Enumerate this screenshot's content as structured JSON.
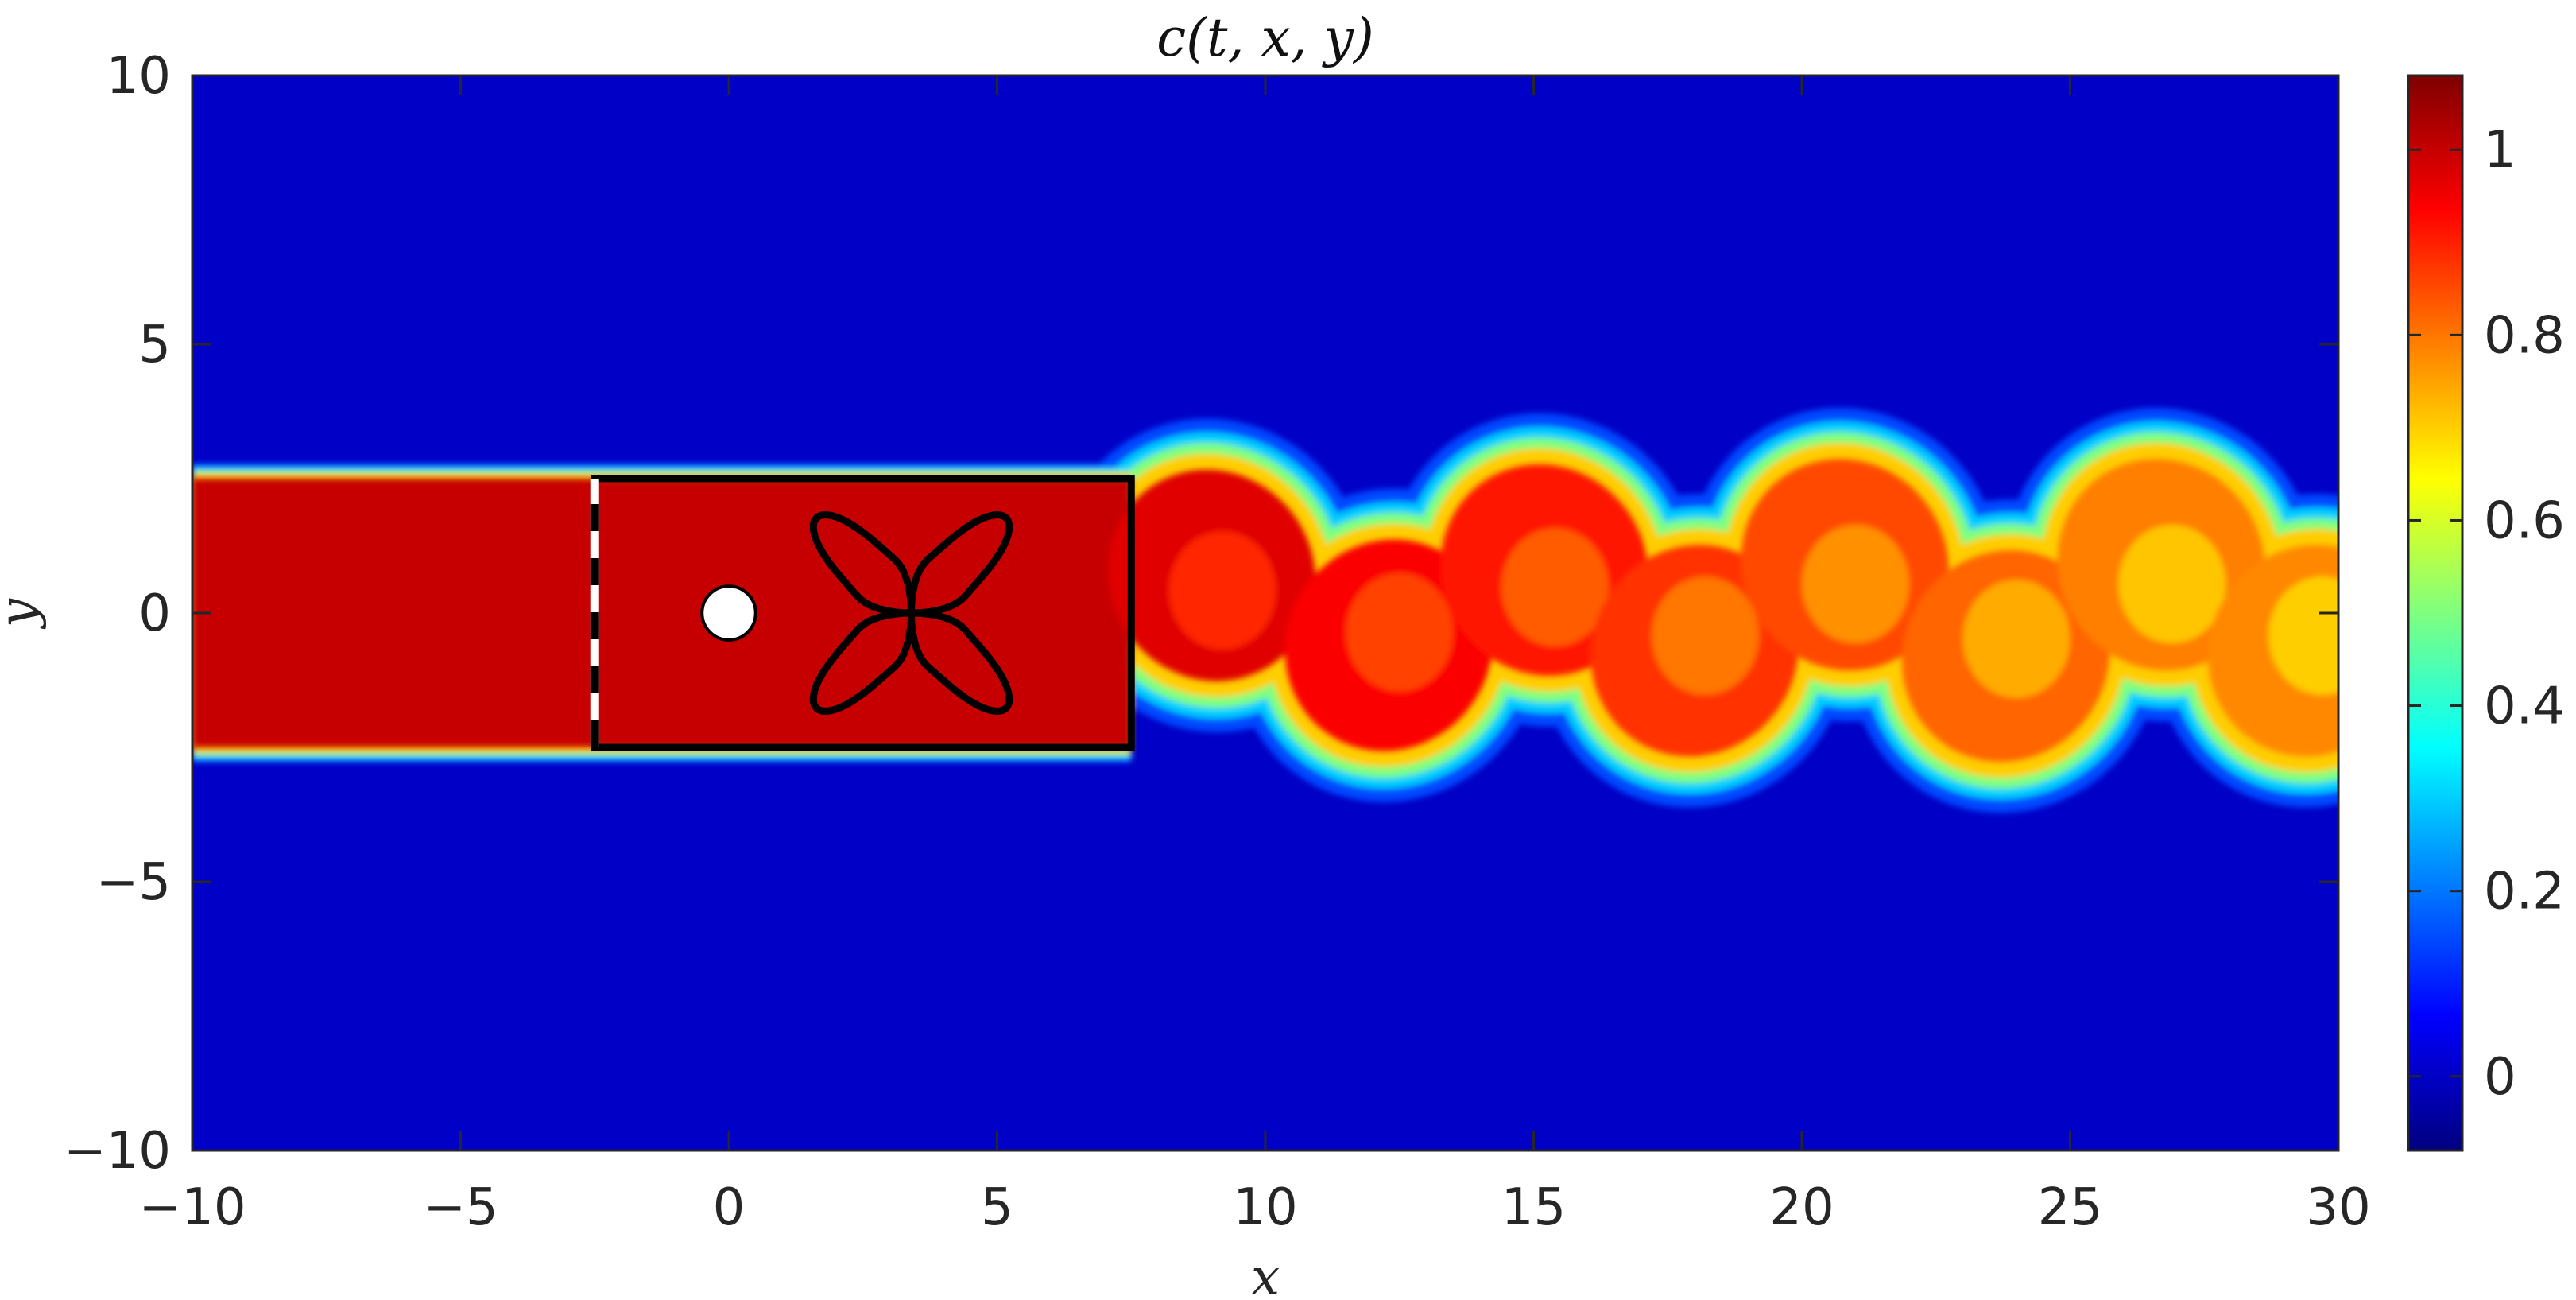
{
  "chart_data": {
    "type": "heatmap",
    "title": "c(t, x, y)",
    "xlabel": "x",
    "ylabel": "y",
    "xlim": [
      -10,
      30
    ],
    "ylim": [
      -10,
      10
    ],
    "xticks": [
      -10,
      -5,
      0,
      5,
      10,
      15,
      20,
      25,
      30
    ],
    "yticks": [
      -10,
      -5,
      0,
      5,
      10
    ],
    "xtick_labels": [
      "−10",
      "−5",
      "0",
      "5",
      "10",
      "15",
      "20",
      "25",
      "30"
    ],
    "ytick_labels": [
      "−10",
      "−5",
      "0",
      "5",
      "10"
    ],
    "colorbar": {
      "colormap": "jet",
      "clim": [
        -0.08,
        1.08
      ],
      "ticks": [
        0,
        0.2,
        0.4,
        0.6,
        0.8,
        1
      ],
      "tick_labels": [
        "0",
        "0.2",
        "0.4",
        "0.6",
        "0.8",
        "1"
      ],
      "colors": [
        "#00007f",
        "#0000ff",
        "#007fff",
        "#00ffff",
        "#7fff7f",
        "#ffff00",
        "#ff7f00",
        "#ff0000",
        "#7f0000"
      ]
    },
    "field": {
      "background_value": 0,
      "inflow_value": 1,
      "inflow_band_y": [
        -2.5,
        2.5
      ],
      "inflow_x_start": -10,
      "wake_vortex_centers": [
        {
          "x": 9.0,
          "y": 0.7
        },
        {
          "x": 12.3,
          "y": -0.6
        },
        {
          "x": 15.2,
          "y": 0.8
        },
        {
          "x": 18.0,
          "y": -0.7
        },
        {
          "x": 20.8,
          "y": 0.9
        },
        {
          "x": 23.8,
          "y": -0.8
        },
        {
          "x": 26.7,
          "y": 0.9
        },
        {
          "x": 29.5,
          "y": -0.7
        }
      ]
    },
    "annotations": {
      "cylinder": {
        "x": 0,
        "y": 0,
        "radius": 0.5,
        "fill": "#ffffff"
      },
      "control_box": {
        "x0": -2.5,
        "x1": 7.5,
        "y0": -2.5,
        "y1": 2.5,
        "color": "#000000"
      },
      "inlet_line": {
        "x": -2.5,
        "y0": -2.5,
        "y1": 2.5,
        "style": "dashed black/white"
      },
      "rose_curve": {
        "center_x": 3.4,
        "center_y": 0,
        "radius": 2.5,
        "petals": 4,
        "color": "#000000"
      }
    }
  }
}
